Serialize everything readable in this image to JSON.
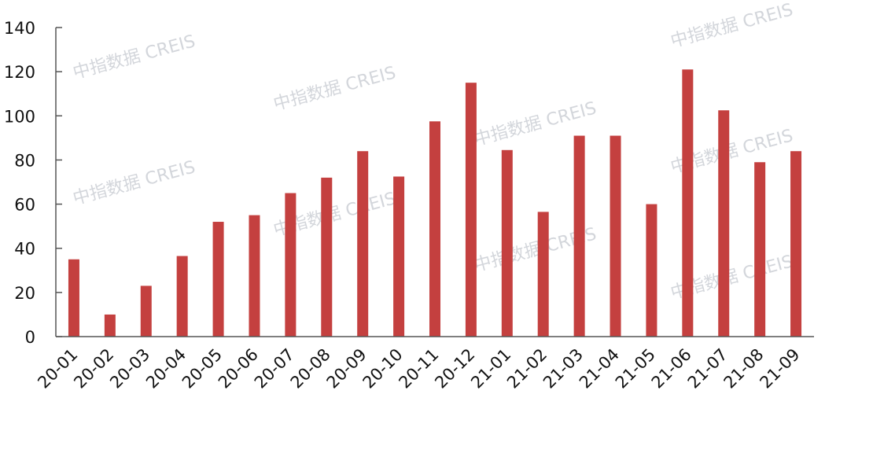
{
  "watermark": "中指数据 CREIS",
  "chart_data": {
    "type": "bar",
    "title": "",
    "xlabel": "",
    "ylabel": "",
    "ylim": [
      0,
      140
    ],
    "yticks": [
      0,
      20,
      40,
      60,
      80,
      100,
      120,
      140
    ],
    "grid": false,
    "bar_color": "#c4403f",
    "categories": [
      "20-01",
      "20-02",
      "20-03",
      "20-04",
      "20-05",
      "20-06",
      "20-07",
      "20-08",
      "20-09",
      "20-10",
      "20-11",
      "20-12",
      "21-01",
      "21-02",
      "21-03",
      "21-04",
      "21-05",
      "21-06",
      "21-07",
      "21-08",
      "21-09"
    ],
    "values": [
      35,
      10,
      23,
      36.5,
      52,
      55,
      65,
      72,
      84,
      72.5,
      97.5,
      115,
      84.5,
      56.5,
      91,
      91,
      60,
      121,
      102.5,
      79,
      84
    ]
  }
}
